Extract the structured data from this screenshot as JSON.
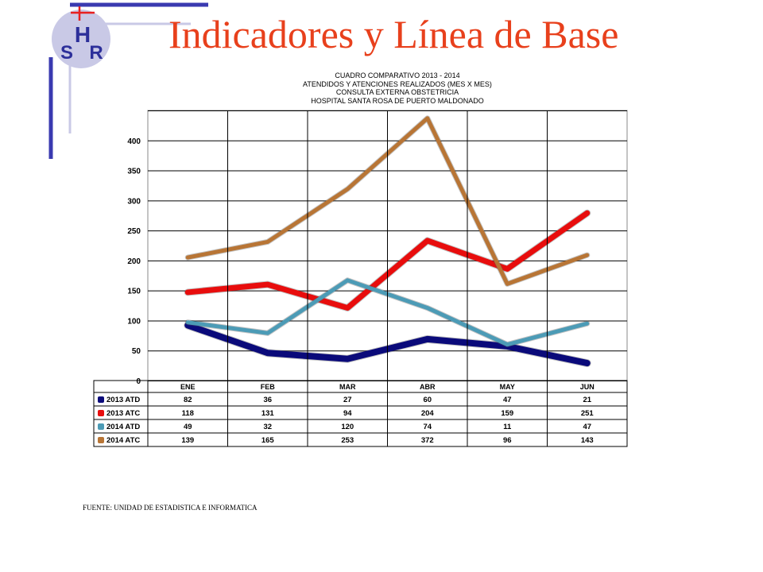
{
  "slide": {
    "title": "Indicadores y Línea de Base",
    "logo_text": {
      "h": "H",
      "s": "S",
      "r": "R"
    },
    "footer": "FUENTE: UNIDAD DE ESTADISTICA E INFORMATICA",
    "colors": {
      "title": "#e8401c",
      "logo_circle": "#c9c9e6",
      "logo_letters": "#2c2f9a",
      "accent_bar": "#3a3ab0",
      "cross": "#e82020"
    }
  },
  "chart_data": {
    "type": "line",
    "title_lines": [
      "CUADRO  COMPARATIVO  2013 - 2014",
      "ATENDIDOS  Y ATENCIONES  REALIZADOS (MES X MES)",
      "CONSULTA  EXTERNA  OBSTETRICIA",
      "HOSPITAL  SANTA ROSA DE PUERTO  MALDONADO"
    ],
    "categories": [
      "ENE",
      "FEB",
      "MAR",
      "ABR",
      "MAY",
      "JUN"
    ],
    "y_ticks": [
      "0",
      "50",
      "100",
      "150",
      "200",
      "250",
      "300",
      "350",
      "400"
    ],
    "ylim": [
      0,
      450
    ],
    "grid": true,
    "legend": "table-below",
    "series": [
      {
        "name": "2013 ATD",
        "color": "#0a0a7a",
        "plotted": [
          92,
          46,
          36,
          69,
          57,
          29
        ],
        "values": [
          "82",
          "36",
          "27",
          "60",
          "47",
          "21"
        ]
      },
      {
        "name": "2013 ATC",
        "color": "#e80d0d",
        "plotted": [
          147,
          160,
          121,
          233,
          186,
          279
        ],
        "values": [
          "118",
          "131",
          "94",
          "204",
          "159",
          "251"
        ]
      },
      {
        "name": "2014 ATD",
        "color": "#4c9bb6",
        "plotted": [
          97,
          79,
          167,
          121,
          60,
          95
        ],
        "values": [
          "49",
          "32",
          "120",
          "74",
          "11",
          "47"
        ]
      },
      {
        "name": "2014 ATC",
        "color": "#b87535",
        "plotted": [
          205,
          231,
          319,
          437,
          161,
          209
        ],
        "values": [
          "139",
          "165",
          "253",
          "372",
          "96",
          "143"
        ]
      }
    ]
  }
}
